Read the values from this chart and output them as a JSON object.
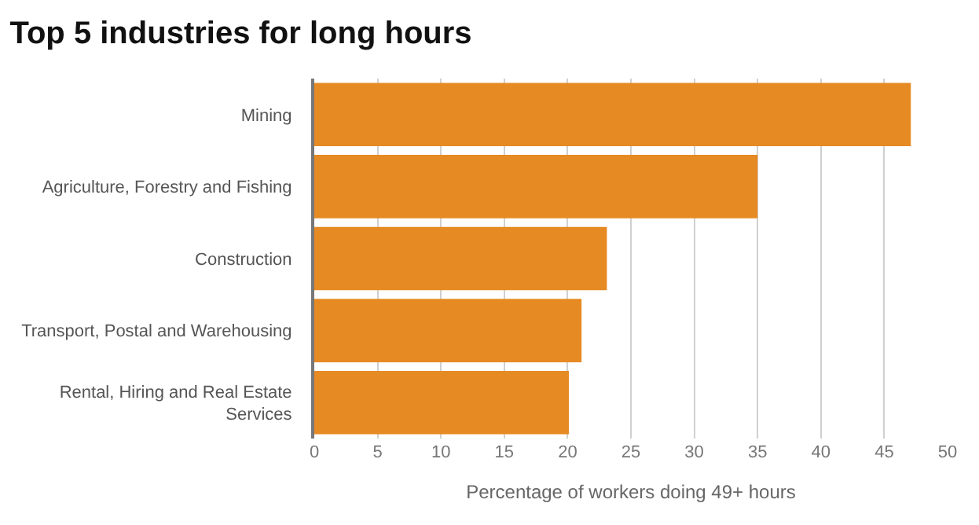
{
  "chart_data": {
    "type": "bar",
    "orientation": "horizontal",
    "title": "Top 5 industries for long hours",
    "xlabel": "Percentage of workers doing 49+ hours",
    "categories": [
      "Mining",
      "Agriculture, Forestry and Fishing",
      "Construction",
      "Transport, Postal and Warehousing",
      "Rental, Hiring and Real Estate Services"
    ],
    "values": [
      47.1,
      35.0,
      23.1,
      21.1,
      20.1
    ],
    "color": "#e68a23",
    "xlim": [
      0,
      50
    ],
    "xticks": [
      0,
      5,
      10,
      15,
      20,
      25,
      30,
      35,
      40,
      45,
      50
    ],
    "grid": "x",
    "legend": false
  }
}
